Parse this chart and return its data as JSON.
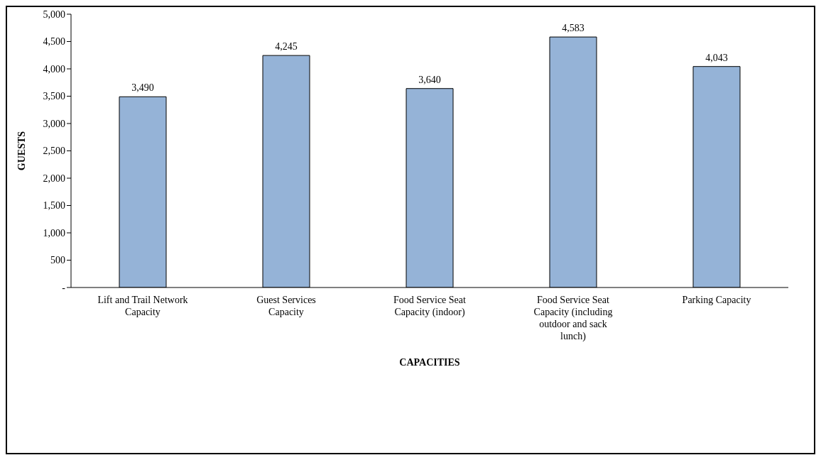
{
  "chart_data": {
    "type": "bar",
    "xlabel": "CAPACITIES",
    "ylabel": "GUESTS",
    "categories": [
      "Lift and Trail Network Capacity",
      "Guest Services Capacity",
      "Food Service  Seat Capacity (indoor)",
      "Food Service  Seat Capacity (including outdoor and sack lunch)",
      "Parking Capacity"
    ],
    "values": [
      3490,
      4245,
      3640,
      4583,
      4043
    ],
    "value_labels": [
      "3,490",
      "4,245",
      "3,640",
      "4,583",
      "4,043"
    ],
    "color": "#95b3d7",
    "ylim": [
      0,
      5000
    ],
    "yticks": [
      {
        "value": 0,
        "label": "-"
      },
      500,
      {
        "value": 1000,
        "label": "1,000"
      },
      {
        "value": 1500,
        "label": "1,500"
      },
      {
        "value": 2000,
        "label": "2,000"
      },
      {
        "value": 2500,
        "label": "2,500"
      },
      {
        "value": 3000,
        "label": "3,000"
      },
      {
        "value": 3500,
        "label": "3,500"
      },
      {
        "value": 4000,
        "label": "4,000"
      },
      {
        "value": 4500,
        "label": "4,500"
      },
      {
        "value": 5000,
        "label": "5,000"
      }
    ],
    "grid": false,
    "legend": false
  }
}
